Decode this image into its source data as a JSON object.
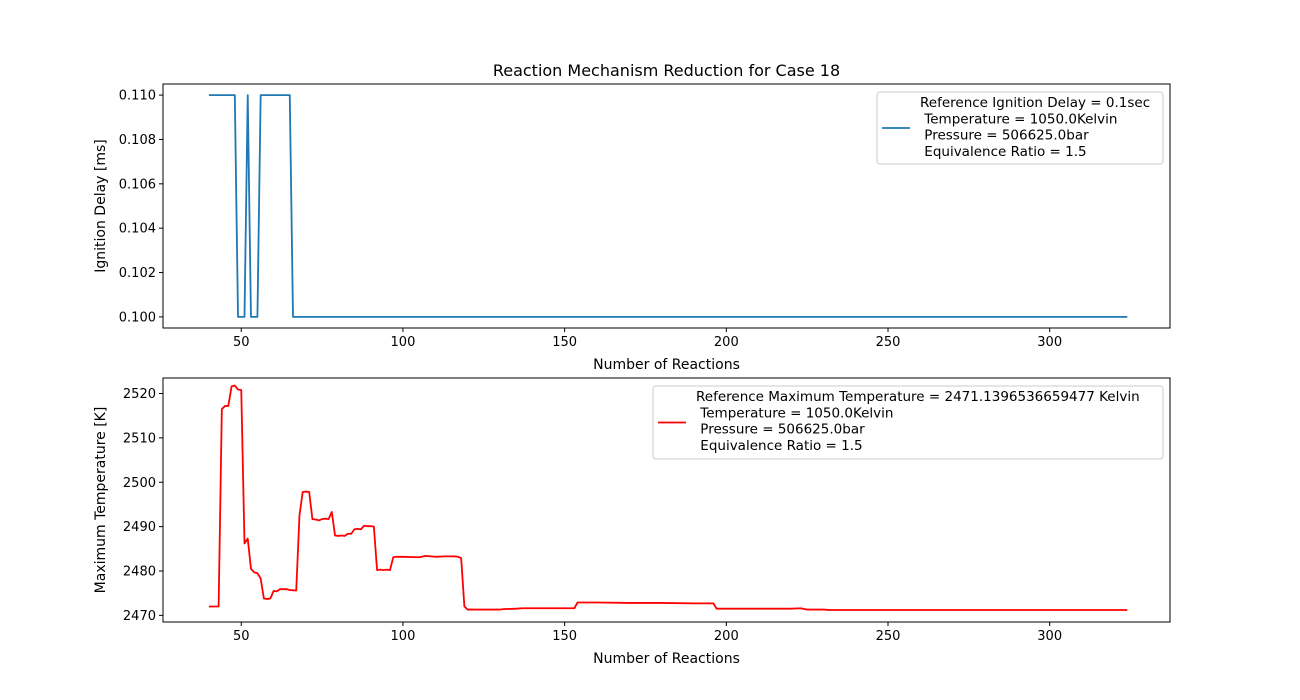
{
  "chart_data": [
    {
      "type": "line",
      "title": "Reaction Mechanism Reduction for Case 18",
      "xlabel": "Number of Reactions",
      "ylabel": "Ignition Delay [ms]",
      "xlim": [
        25.8,
        337.2
      ],
      "ylim": [
        0.0995,
        0.1105
      ],
      "xticks": [
        "50",
        "100",
        "150",
        "200",
        "250",
        "300"
      ],
      "xtick_values": [
        50,
        100,
        150,
        200,
        250,
        300
      ],
      "yticks": [
        "0.100",
        "0.102",
        "0.104",
        "0.106",
        "0.108",
        "0.110"
      ],
      "ytick_values": [
        0.1,
        0.102,
        0.104,
        0.106,
        0.108,
        0.11
      ],
      "grid": false,
      "legend_position": "upper right",
      "series": [
        {
          "color": "#1f77b4",
          "legend_lines": [
            "Reference Ignition Delay = 0.1sec",
            " Temperature = 1050.0Kelvin",
            " Pressure = 506625.0bar",
            " Equivalence Ratio = 1.5"
          ],
          "x": [
            40,
            48,
            49,
            51,
            52,
            53,
            55,
            56,
            65,
            66,
            324
          ],
          "y": [
            0.11,
            0.11,
            0.1,
            0.1,
            0.11,
            0.1,
            0.1,
            0.11,
            0.11,
            0.1,
            0.1
          ]
        }
      ]
    },
    {
      "type": "line",
      "title": "",
      "xlabel": "Number of Reactions",
      "ylabel": "Maximum Temperature [K]",
      "xlim": [
        25.8,
        337.2
      ],
      "ylim": [
        2468.5,
        2523.5
      ],
      "xticks": [
        "50",
        "100",
        "150",
        "200",
        "250",
        "300"
      ],
      "xtick_values": [
        50,
        100,
        150,
        200,
        250,
        300
      ],
      "yticks": [
        "2470",
        "2480",
        "2490",
        "2500",
        "2510",
        "2520"
      ],
      "ytick_values": [
        2470,
        2480,
        2490,
        2500,
        2510,
        2520
      ],
      "grid": false,
      "legend_position": "upper right",
      "series": [
        {
          "color": "#ff0000",
          "legend_lines": [
            "Reference Maximum Temperature = 2471.1396536659477 Kelvin",
            " Temperature = 1050.0Kelvin",
            " Pressure = 506625.0bar",
            " Equivalence Ratio = 1.5"
          ],
          "x": [
            40,
            43,
            44,
            45,
            46,
            47,
            48,
            49,
            50,
            51,
            52,
            53,
            54,
            55,
            56,
            57,
            58,
            59,
            60,
            61,
            62,
            64,
            65,
            67,
            68,
            69,
            70,
            71,
            72,
            73,
            74,
            75,
            76,
            77,
            78,
            79,
            80,
            81,
            82,
            83,
            84,
            85,
            86,
            87,
            88,
            89,
            90,
            91,
            92,
            93,
            94,
            95,
            96,
            97,
            98,
            100,
            105,
            107,
            110,
            113,
            116,
            117,
            118,
            119,
            120,
            125,
            130,
            131,
            135,
            137,
            140,
            145,
            150,
            153,
            154,
            160,
            170,
            180,
            190,
            196,
            197,
            210,
            220,
            223,
            225,
            230,
            232,
            250,
            280,
            300,
            324
          ],
          "y": [
            2472,
            2472,
            2516.5,
            2517.2,
            2517.2,
            2521.6,
            2521.8,
            2520.9,
            2520.8,
            2486.2,
            2487.3,
            2480.5,
            2479.7,
            2479.5,
            2478.3,
            2473.8,
            2473.7,
            2473.8,
            2475.5,
            2475.4,
            2475.9,
            2475.9,
            2475.7,
            2475.6,
            2492.5,
            2497.8,
            2497.9,
            2497.8,
            2491.7,
            2491.6,
            2491.4,
            2491.7,
            2491.8,
            2491.7,
            2493.3,
            2488.0,
            2487.9,
            2488.0,
            2487.9,
            2488.4,
            2488.4,
            2489.4,
            2489.5,
            2489.4,
            2490.2,
            2490.1,
            2490.1,
            2490.0,
            2480.2,
            2480.3,
            2480.2,
            2480.3,
            2480.2,
            2483.1,
            2483.2,
            2483.2,
            2483.1,
            2483.4,
            2483.2,
            2483.3,
            2483.3,
            2483.2,
            2482.9,
            2472.0,
            2471.3,
            2471.3,
            2471.3,
            2471.4,
            2471.5,
            2471.6,
            2471.6,
            2471.6,
            2471.6,
            2471.6,
            2472.9,
            2472.9,
            2472.8,
            2472.8,
            2472.7,
            2472.7,
            2471.5,
            2471.5,
            2471.5,
            2471.6,
            2471.3,
            2471.3,
            2471.2,
            2471.2,
            2471.2,
            2471.2,
            2471.2
          ]
        }
      ]
    }
  ]
}
